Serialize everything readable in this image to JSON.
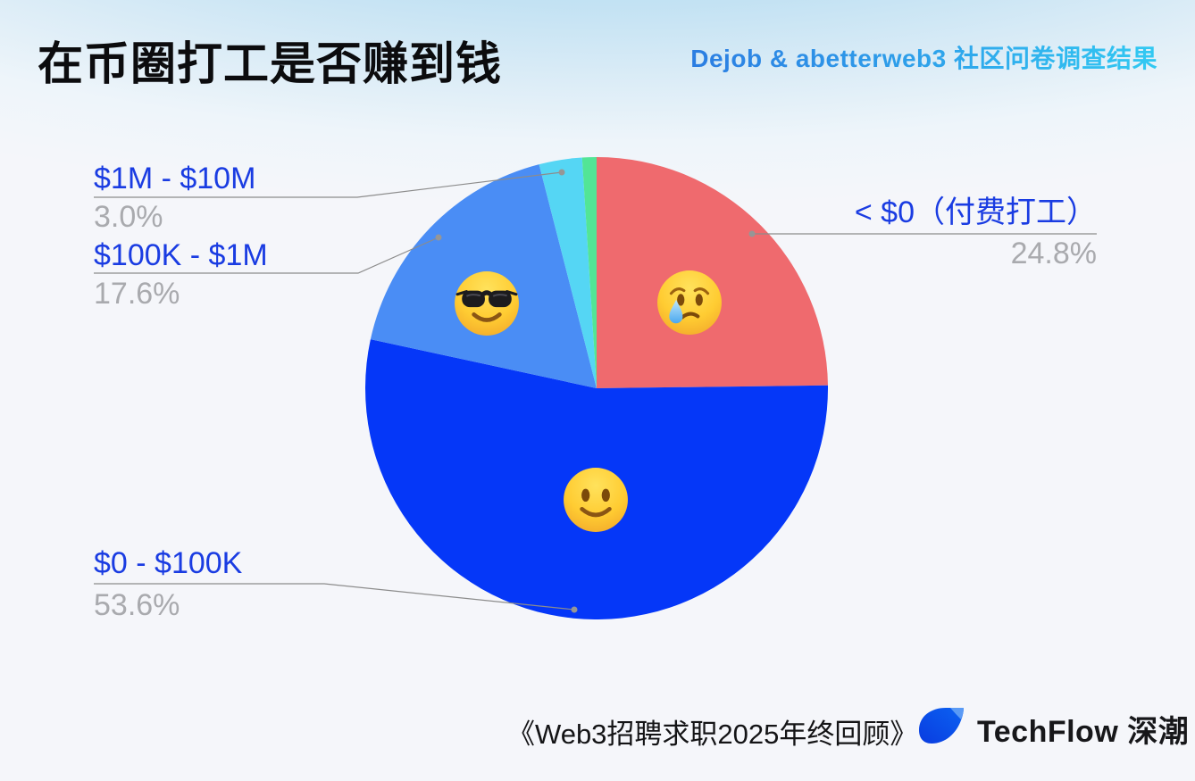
{
  "header": {
    "title": "在币圈打工是否赚到钱",
    "subtitle": "Dejob & abetterweb3 社区问卷调查结果"
  },
  "chart_data": {
    "type": "pie",
    "title": "在币圈打工是否赚到钱",
    "source": "Dejob & abetterweb3 社区问卷调查结果",
    "start_angle_deg": 0,
    "direction": "clockwise",
    "slices": [
      {
        "id": "lt-0",
        "label": "< $0（付费打工）",
        "value": 24.8,
        "color": "#ef6a6e",
        "emoji": "crying-face"
      },
      {
        "id": "0-100k",
        "label": "$0 - $100K",
        "value": 53.6,
        "color": "#0537f8",
        "emoji": "slightly-smiling-face"
      },
      {
        "id": "100k-1m",
        "label": "$100K - $1M",
        "value": 17.6,
        "color": "#4a8df5",
        "emoji": "smiling-face-with-sunglasses"
      },
      {
        "id": "1m-10m",
        "label": "$1M - $10M",
        "value": 3.0,
        "color": "#55d6f4"
      },
      {
        "id": "sliver",
        "label": "",
        "value": 1.0,
        "color": "#52e596"
      }
    ],
    "legend_position": "callout-labels"
  },
  "callouts": [
    {
      "label": "$1M - $10M",
      "pct": "3.0%"
    },
    {
      "label": "$100K - $1M",
      "pct": "17.6%"
    },
    {
      "label": "< $0（付费打工）",
      "pct": "24.8%"
    },
    {
      "label": "$0 - $100K",
      "pct": "53.6%"
    }
  ],
  "footer": {
    "report_title": "《Web3招聘求职2025年终回顾》",
    "brand_name": "TechFlow 深潮"
  },
  "colors": {
    "label_blue": "#1a3ce2",
    "pct_gray": "#a9aaae",
    "leader_line": "#8c8c8c",
    "subtitle_gradient_start": "#2b7de2",
    "subtitle_gradient_end": "#32c9f2",
    "title_black": "#0c0c0e",
    "sky_top": "#aed7ee",
    "page_bg": "#f5f6fa"
  }
}
